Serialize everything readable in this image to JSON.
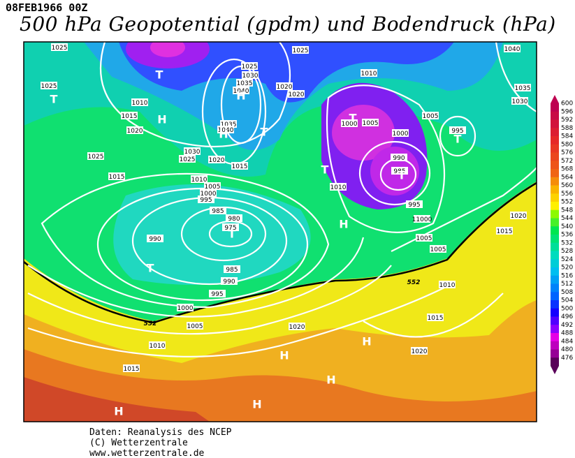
{
  "header": {
    "date": "08FEB1966 00Z",
    "title": "500 hPa Geopotential (gpdm) und Bodendruck (hPa)"
  },
  "colorbar": {
    "labels": [
      "600",
      "596",
      "592",
      "588",
      "584",
      "580",
      "576",
      "572",
      "568",
      "564",
      "560",
      "556",
      "552",
      "548",
      "544",
      "540",
      "536",
      "532",
      "528",
      "524",
      "520",
      "516",
      "512",
      "508",
      "504",
      "500",
      "496",
      "492",
      "488",
      "484",
      "480",
      "476"
    ]
  },
  "map": {
    "isobar_labels": [
      "1025",
      "1025",
      "1010",
      "1015",
      "1020",
      "1025",
      "1030",
      "1035",
      "1040",
      "1035",
      "1040",
      "1030",
      "1025",
      "1020",
      "1015",
      "1025",
      "1015",
      "1010",
      "1005",
      "1000",
      "995",
      "985",
      "980",
      "975",
      "990",
      "985",
      "990",
      "995",
      "1000",
      "1005",
      "1010",
      "1015",
      "1025",
      "1020",
      "1020",
      "1010",
      "1000",
      "1005",
      "1000",
      "1005",
      "995",
      "990",
      "985",
      "1010",
      "995",
      "11000",
      "1005",
      "1005",
      "1015",
      "1020",
      "1010",
      "1015",
      "1020",
      "1020",
      "1040",
      "1035",
      "1030"
    ],
    "contour_labels": [
      "552",
      "552"
    ],
    "centers": [
      "T",
      "T",
      "H",
      "H",
      "H",
      "T",
      "T",
      "T",
      "T",
      "T",
      "H",
      "T",
      "T",
      "H",
      "H",
      "H",
      "H",
      "H"
    ]
  },
  "footer": [
    "Daten: Reanalysis des NCEP",
    "(C) Wetterzentrale",
    "www.wetterzentrale.de"
  ]
}
